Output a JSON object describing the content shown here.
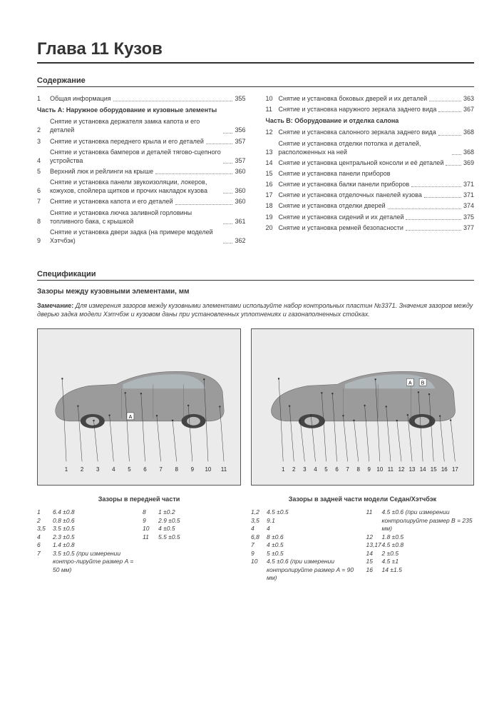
{
  "chapter_title": "Глава 11 Кузов",
  "contents_heading": "Содержание",
  "specs_heading": "Спецификации",
  "toc_left": {
    "part_title": "Часть А: Наружное оборудование и кузовные элементы",
    "first": {
      "num": "1",
      "text": "Общая информация",
      "page": "355"
    },
    "items": [
      {
        "num": "2",
        "text": "Снятие и установка держателя замка капота и его деталей",
        "page": "356"
      },
      {
        "num": "3",
        "text": "Снятие и установка переднего крыла и его деталей",
        "page": "357"
      },
      {
        "num": "4",
        "text": "Снятие и установка бамперов и деталей тягово-сцепного устройства",
        "page": "357"
      },
      {
        "num": "5",
        "text": "Верхний люк и рейлинги на крыше",
        "page": "360"
      },
      {
        "num": "6",
        "text": "Снятие и установка панели звукоизоляции, локеров, кожухов, спойлера щитков и прочих накладок кузова",
        "page": "360"
      },
      {
        "num": "7",
        "text": "Снятие и установка капота и его деталей",
        "page": "360"
      },
      {
        "num": "8",
        "text": "Снятие и установка лючка заливной горловины топливного бака, с крышкой",
        "page": "361"
      },
      {
        "num": "9",
        "text": "Снятие и установка двери задка (на примере моделей Хэтчбэк)",
        "page": "362"
      }
    ]
  },
  "toc_right": {
    "before": [
      {
        "num": "10",
        "text": "Снятие и установка боковых дверей и их деталей",
        "page": "363"
      },
      {
        "num": "11",
        "text": "Снятие и установка наружного зеркала заднего вида",
        "page": "367"
      }
    ],
    "part_title": "Часть В: Оборудование и отделка салона",
    "items": [
      {
        "num": "12",
        "text": "Снятие и установка салонного зеркала заднего вида",
        "page": "368"
      },
      {
        "num": "13",
        "text": "Снятие и установка отделки потолка и деталей, расположенных на ней",
        "page": "368"
      },
      {
        "num": "14",
        "text": "Снятие и установка центральной консоли и её деталей",
        "page": "369"
      },
      {
        "num": "15",
        "text": "Снятие и установка панели приборов",
        "page": ""
      },
      {
        "num": "16",
        "text": "Снятие и установка балки панели приборов",
        "page": "371"
      },
      {
        "num": "17",
        "text": "Снятие и установка отделочных панелей кузова",
        "page": "371"
      },
      {
        "num": "18",
        "text": "Снятие и установка отделки дверей",
        "page": "374"
      },
      {
        "num": "19",
        "text": "Снятие и установка сидений и их деталей",
        "page": "375"
      },
      {
        "num": "20",
        "text": "Снятие и установка ремней безопасности",
        "page": "377"
      }
    ]
  },
  "specs": {
    "subtitle": "Зазоры между кузовными элементами, мм",
    "note_label": "Замечание:",
    "note_text": "Для измерения зазоров между кузовными элементами используйте набор контрольных пластин №3371. Значения зазоров между дверью задка модели Хэтчбэк и кузовом даны при установленных уплотнениях и газонаполненных стойках."
  },
  "diagram_front": {
    "caption": "Зазоры в передней части",
    "labels": [
      "1",
      "2",
      "3",
      "4",
      "5",
      "6",
      "7",
      "8",
      "9",
      "10",
      "11"
    ],
    "marker": "A",
    "bg": "#ebebeb",
    "car_color": "#9b9b9b",
    "car_dark": "#6f6f6f",
    "line_color": "#333333"
  },
  "diagram_rear": {
    "caption": "Зазоры в задней части модели Седан/Хэтчбэк",
    "labels": [
      "1",
      "2",
      "3",
      "4",
      "5",
      "6",
      "7",
      "8",
      "9",
      "10",
      "11",
      "12",
      "13",
      "14",
      "15",
      "16",
      "17"
    ],
    "markers": [
      "A",
      "B"
    ],
    "bg": "#ebebeb",
    "car_color": "#9b9b9b",
    "car_dark": "#6f6f6f",
    "line_color": "#333333"
  },
  "gaps_front": {
    "col1": [
      {
        "idx": "1",
        "val": "6.4 ±0.8"
      },
      {
        "idx": "2",
        "val": "0.8 ±0.6"
      },
      {
        "idx": "3,5",
        "val": "3.5 ±0.5"
      },
      {
        "idx": "4",
        "val": "2.3 ±0.5"
      },
      {
        "idx": "6",
        "val": "1.4 ±0.8"
      },
      {
        "idx": "7",
        "val": "3.5 ±0.5 (при измерении контро-лируйте размер A = 50 мм)"
      }
    ],
    "col2": [
      {
        "idx": "8",
        "val": "1 ±0.2"
      },
      {
        "idx": "9",
        "val": "2.9 ±0.5"
      },
      {
        "idx": "10",
        "val": "4 ±0.5"
      },
      {
        "idx": "11",
        "val": "5.5 ±0.5"
      }
    ]
  },
  "gaps_rear": {
    "col1": [
      {
        "idx": "1,2",
        "val": "4.5 ±0.5"
      },
      {
        "idx": "3,5",
        "val": "9.1"
      },
      {
        "idx": "4",
        "val": "4"
      },
      {
        "idx": "6,8",
        "val": "8 ±0.6"
      },
      {
        "idx": "7",
        "val": "4 ±0.5"
      },
      {
        "idx": "9",
        "val": "5 ±0.5"
      },
      {
        "idx": "10",
        "val": "4.5 ±0.6 (при измерении контролируйте размер A = 90 мм)"
      }
    ],
    "col2": [
      {
        "idx": "11",
        "val": "4.5 ±0.6 (при измерении контролируйте размер B = 235 мм)"
      },
      {
        "idx": "12",
        "val": "1.8 ±0.5"
      },
      {
        "idx": "13,17",
        "val": "4.5 ±0.8"
      },
      {
        "idx": "14",
        "val": "2 ±0.5"
      },
      {
        "idx": "15",
        "val": "4.5 ±1"
      },
      {
        "idx": "16",
        "val": "14 ±1.5"
      }
    ]
  }
}
